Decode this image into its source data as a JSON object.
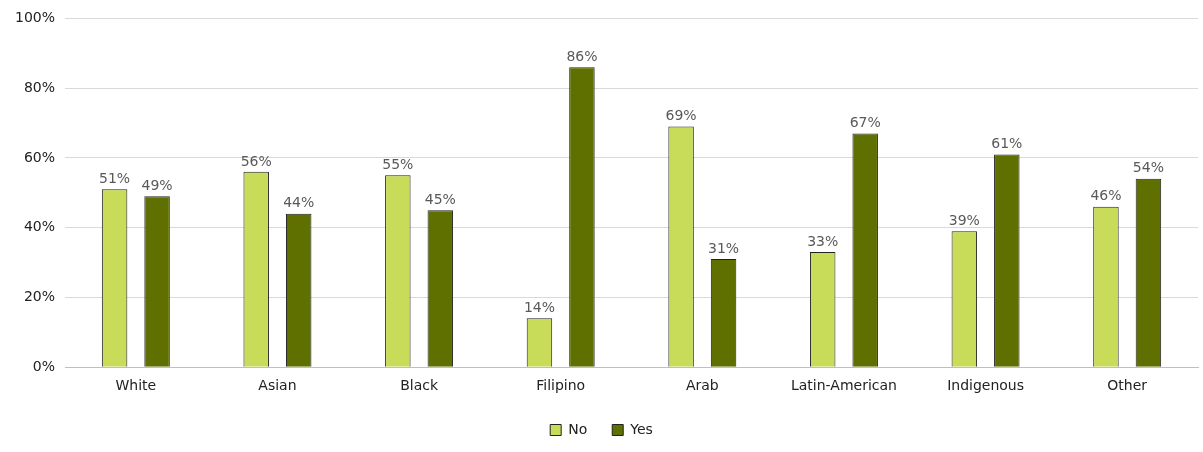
{
  "chart_data": {
    "type": "bar",
    "categories": [
      "White",
      "Asian",
      "Black",
      "Filipino",
      "Arab",
      "Latin-American",
      "Indigenous",
      "Other"
    ],
    "series": [
      {
        "name": "No",
        "color": "#c9dc5a",
        "values": [
          51,
          56,
          55,
          14,
          69,
          33,
          39,
          46
        ],
        "value_labels": [
          "51%",
          "56%",
          "55%",
          "14%",
          "69%",
          "33%",
          "39%",
          "46%"
        ]
      },
      {
        "name": "Yes",
        "color": "#5f7000",
        "values": [
          49,
          44,
          45,
          86,
          31,
          67,
          61,
          54
        ],
        "value_labels": [
          "49%",
          "44%",
          "45%",
          "86%",
          "31%",
          "67%",
          "61%",
          "54%"
        ]
      }
    ],
    "ylim": [
      0,
      100
    ],
    "yticks": [
      {
        "value": 0,
        "label": "0%"
      },
      {
        "value": 20,
        "label": "20%"
      },
      {
        "value": 40,
        "label": "40%"
      },
      {
        "value": 60,
        "label": "60%"
      },
      {
        "value": 80,
        "label": "80%"
      },
      {
        "value": 100,
        "label": "100%"
      }
    ],
    "grid": "y",
    "legend": "bottom"
  }
}
